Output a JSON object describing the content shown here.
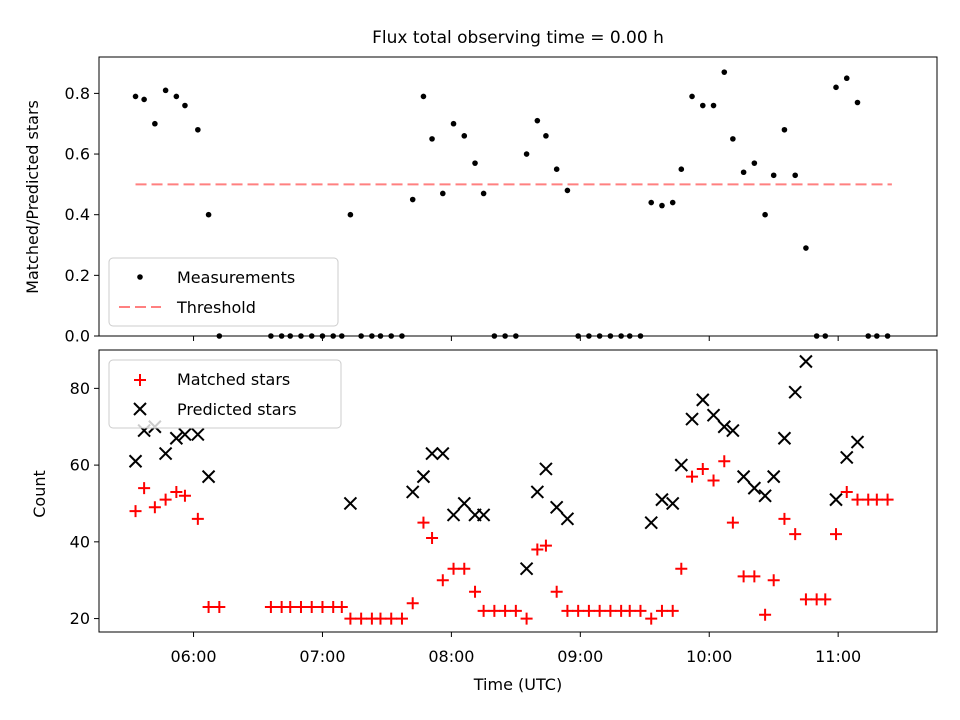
{
  "chart_data": [
    {
      "type": "scatter",
      "title": "Flux total observing time = 0.00 h",
      "xlabel": "",
      "ylabel": "Matched/Predicted stars",
      "ylim": [
        0,
        0.92
      ],
      "yticks": [
        "0.0",
        "0.2",
        "0.4",
        "0.6",
        "0.8"
      ],
      "legend_position": "bottom-left",
      "threshold": {
        "name": "Threshold",
        "y": 0.5,
        "x_start": "05:33",
        "x_end": "11:25",
        "color": "#ff8080"
      },
      "series": [
        {
          "name": "Measurements",
          "color": "#000000",
          "marker": "dot",
          "points": [
            [
              "05:33",
              0.79
            ],
            [
              "05:37",
              0.78
            ],
            [
              "05:42",
              0.7
            ],
            [
              "05:47",
              0.81
            ],
            [
              "05:52",
              0.79
            ],
            [
              "05:56",
              0.76
            ],
            [
              "06:02",
              0.68
            ],
            [
              "06:07",
              0.4
            ],
            [
              "06:12",
              0.0
            ],
            [
              "06:36",
              0.0
            ],
            [
              "06:41",
              0.0
            ],
            [
              "06:45",
              0.0
            ],
            [
              "06:50",
              0.0
            ],
            [
              "06:55",
              0.0
            ],
            [
              "07:00",
              0.0
            ],
            [
              "07:05",
              0.0
            ],
            [
              "07:09",
              0.0
            ],
            [
              "07:13",
              0.4
            ],
            [
              "07:18",
              0.0
            ],
            [
              "07:23",
              0.0
            ],
            [
              "07:27",
              0.0
            ],
            [
              "07:32",
              0.0
            ],
            [
              "07:37",
              0.0
            ],
            [
              "07:42",
              0.45
            ],
            [
              "07:47",
              0.79
            ],
            [
              "07:51",
              0.65
            ],
            [
              "07:56",
              0.47
            ],
            [
              "08:01",
              0.7
            ],
            [
              "08:06",
              0.66
            ],
            [
              "08:11",
              0.57
            ],
            [
              "08:15",
              0.47
            ],
            [
              "08:20",
              0.0
            ],
            [
              "08:25",
              0.0
            ],
            [
              "08:30",
              0.0
            ],
            [
              "08:35",
              0.6
            ],
            [
              "08:40",
              0.71
            ],
            [
              "08:44",
              0.66
            ],
            [
              "08:49",
              0.55
            ],
            [
              "08:54",
              0.48
            ],
            [
              "08:59",
              0.0
            ],
            [
              "09:04",
              0.0
            ],
            [
              "09:09",
              0.0
            ],
            [
              "09:14",
              0.0
            ],
            [
              "09:19",
              0.0
            ],
            [
              "09:23",
              0.0
            ],
            [
              "09:28",
              0.0
            ],
            [
              "09:33",
              0.44
            ],
            [
              "09:38",
              0.43
            ],
            [
              "09:43",
              0.44
            ],
            [
              "09:47",
              0.55
            ],
            [
              "09:52",
              0.79
            ],
            [
              "09:57",
              0.76
            ],
            [
              "10:02",
              0.76
            ],
            [
              "10:07",
              0.87
            ],
            [
              "10:11",
              0.65
            ],
            [
              "10:16",
              0.54
            ],
            [
              "10:21",
              0.57
            ],
            [
              "10:26",
              0.4
            ],
            [
              "10:30",
              0.53
            ],
            [
              "10:35",
              0.68
            ],
            [
              "10:40",
              0.53
            ],
            [
              "10:45",
              0.29
            ],
            [
              "10:50",
              0.0
            ],
            [
              "10:54",
              0.0
            ],
            [
              "10:59",
              0.82
            ],
            [
              "11:04",
              0.85
            ],
            [
              "11:09",
              0.77
            ],
            [
              "11:14",
              0.0
            ],
            [
              "11:18",
              0.0
            ],
            [
              "11:23",
              0.0
            ]
          ]
        }
      ],
      "xaxis_shared": true
    },
    {
      "type": "scatter",
      "title": "",
      "xlabel": "Time (UTC)",
      "ylabel": "Count",
      "ylim": [
        16.5,
        90
      ],
      "yticks": [
        "20",
        "40",
        "60",
        "80"
      ],
      "xticks": [
        "06:00",
        "07:00",
        "08:00",
        "09:00",
        "10:00",
        "11:00"
      ],
      "xlim": [
        "05:16",
        "11:46"
      ],
      "legend_position": "top-left",
      "series": [
        {
          "name": "Matched stars",
          "color": "#ff0000",
          "marker": "plus",
          "points": [
            [
              "05:33",
              48
            ],
            [
              "05:37",
              54
            ],
            [
              "05:42",
              49
            ],
            [
              "05:47",
              51
            ],
            [
              "05:52",
              53
            ],
            [
              "05:56",
              52
            ],
            [
              "06:02",
              46
            ],
            [
              "06:07",
              23
            ],
            [
              "06:12",
              23
            ],
            [
              "06:36",
              23
            ],
            [
              "06:41",
              23
            ],
            [
              "06:45",
              23
            ],
            [
              "06:50",
              23
            ],
            [
              "06:55",
              23
            ],
            [
              "07:00",
              23
            ],
            [
              "07:05",
              23
            ],
            [
              "07:09",
              23
            ],
            [
              "07:13",
              20
            ],
            [
              "07:18",
              20
            ],
            [
              "07:23",
              20
            ],
            [
              "07:27",
              20
            ],
            [
              "07:32",
              20
            ],
            [
              "07:37",
              20
            ],
            [
              "07:42",
              24
            ],
            [
              "07:47",
              45
            ],
            [
              "07:51",
              41
            ],
            [
              "07:56",
              30
            ],
            [
              "08:01",
              33
            ],
            [
              "08:06",
              33
            ],
            [
              "08:11",
              27
            ],
            [
              "08:15",
              22
            ],
            [
              "08:20",
              22
            ],
            [
              "08:25",
              22
            ],
            [
              "08:30",
              22
            ],
            [
              "08:35",
              20
            ],
            [
              "08:40",
              38
            ],
            [
              "08:44",
              39
            ],
            [
              "08:49",
              27
            ],
            [
              "08:54",
              22
            ],
            [
              "08:59",
              22
            ],
            [
              "09:04",
              22
            ],
            [
              "09:09",
              22
            ],
            [
              "09:14",
              22
            ],
            [
              "09:19",
              22
            ],
            [
              "09:23",
              22
            ],
            [
              "09:28",
              22
            ],
            [
              "09:33",
              20
            ],
            [
              "09:38",
              22
            ],
            [
              "09:43",
              22
            ],
            [
              "09:47",
              33
            ],
            [
              "09:52",
              57
            ],
            [
              "09:57",
              59
            ],
            [
              "10:02",
              56
            ],
            [
              "10:07",
              61
            ],
            [
              "10:11",
              45
            ],
            [
              "10:16",
              31
            ],
            [
              "10:21",
              31
            ],
            [
              "10:26",
              21
            ],
            [
              "10:30",
              30
            ],
            [
              "10:35",
              46
            ],
            [
              "10:40",
              42
            ],
            [
              "10:45",
              25
            ],
            [
              "10:50",
              25
            ],
            [
              "10:54",
              25
            ],
            [
              "10:59",
              42
            ],
            [
              "11:04",
              53
            ],
            [
              "11:09",
              51
            ],
            [
              "11:14",
              51
            ],
            [
              "11:18",
              51
            ],
            [
              "11:23",
              51
            ]
          ]
        },
        {
          "name": "Predicted stars",
          "color": "#000000",
          "marker": "x",
          "points": [
            [
              "05:33",
              61
            ],
            [
              "05:37",
              69
            ],
            [
              "05:42",
              70
            ],
            [
              "05:47",
              63
            ],
            [
              "05:52",
              67
            ],
            [
              "05:56",
              68
            ],
            [
              "06:02",
              68
            ],
            [
              "06:07",
              57
            ],
            [
              "07:13",
              50
            ],
            [
              "07:42",
              53
            ],
            [
              "07:47",
              57
            ],
            [
              "07:51",
              63
            ],
            [
              "07:56",
              63
            ],
            [
              "08:01",
              47
            ],
            [
              "08:06",
              50
            ],
            [
              "08:11",
              47
            ],
            [
              "08:15",
              47
            ],
            [
              "08:35",
              33
            ],
            [
              "08:40",
              53
            ],
            [
              "08:44",
              59
            ],
            [
              "08:49",
              49
            ],
            [
              "08:54",
              46
            ],
            [
              "09:33",
              45
            ],
            [
              "09:38",
              51
            ],
            [
              "09:43",
              50
            ],
            [
              "09:47",
              60
            ],
            [
              "09:52",
              72
            ],
            [
              "09:57",
              77
            ],
            [
              "10:02",
              73
            ],
            [
              "10:07",
              70
            ],
            [
              "10:11",
              69
            ],
            [
              "10:16",
              57
            ],
            [
              "10:21",
              54
            ],
            [
              "10:26",
              52
            ],
            [
              "10:30",
              57
            ],
            [
              "10:35",
              67
            ],
            [
              "10:40",
              79
            ],
            [
              "10:45",
              87
            ],
            [
              "10:59",
              51
            ],
            [
              "11:04",
              62
            ],
            [
              "11:09",
              66
            ]
          ]
        }
      ]
    }
  ]
}
